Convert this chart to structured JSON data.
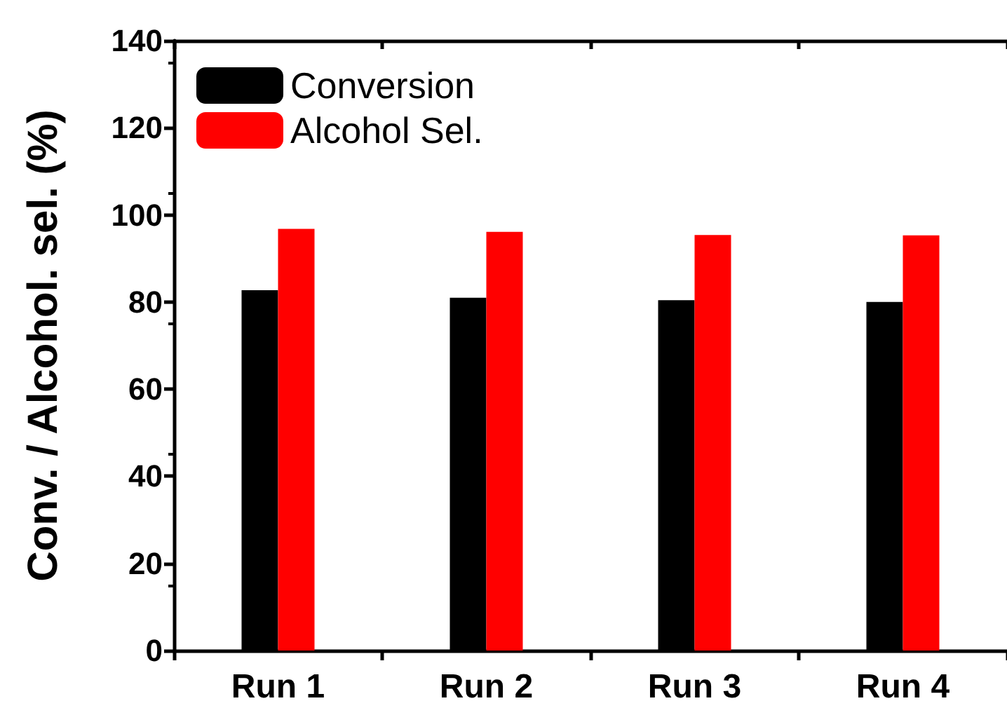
{
  "chart_data": {
    "type": "bar",
    "ylabel": "Conv. / Alcohol. sel. (%)",
    "categories": [
      "Run 1",
      "Run 2",
      "Run 3",
      "Run 4"
    ],
    "series": [
      {
        "name": "Conversion",
        "color": "#000000",
        "values": [
          82.7,
          81.0,
          80.4,
          80.0
        ]
      },
      {
        "name": "Alcohol Sel.",
        "color": "#ff0000",
        "values": [
          96.8,
          96.1,
          95.4,
          95.3
        ]
      }
    ],
    "ylim": [
      0,
      140
    ],
    "yticks": [
      0,
      20,
      40,
      60,
      80,
      100,
      120,
      140
    ],
    "grid": false,
    "legend": "top left"
  }
}
